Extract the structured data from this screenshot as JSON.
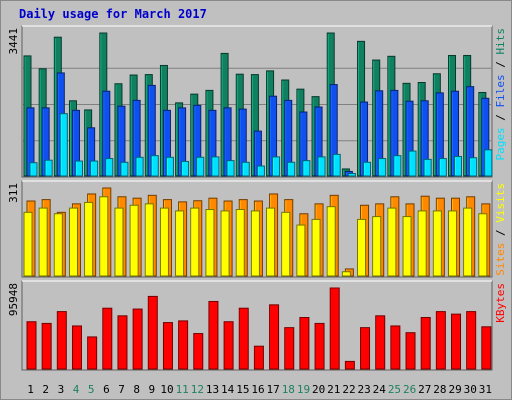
{
  "title": "Daily usage for March 2017",
  "colors": {
    "background": "#c0c0c0",
    "pages": "#00e0ff",
    "files": "#1050f0",
    "hits": "#108060",
    "visits": "#ffff00",
    "sites": "#ff8800",
    "kbytes": "#ff0000",
    "weekend": "#208060",
    "weekday": "#000000"
  },
  "chart_data": [
    {
      "type": "bar",
      "panel": "top",
      "max_label": "3441",
      "ylim": [
        0,
        3441
      ],
      "side_label": {
        "parts": [
          "Pages",
          " / ",
          "Files",
          " / ",
          "Hits"
        ]
      },
      "categories": [
        "1",
        "2",
        "3",
        "4",
        "5",
        "6",
        "7",
        "8",
        "9",
        "10",
        "11",
        "12",
        "13",
        "14",
        "15",
        "16",
        "17",
        "18",
        "19",
        "20",
        "21",
        "22",
        "23",
        "24",
        "25",
        "26",
        "27",
        "28",
        "29",
        "30",
        "31"
      ],
      "series": [
        {
          "name": "Hits",
          "values": [
            2890,
            2580,
            3340,
            1810,
            1590,
            3441,
            2220,
            2430,
            2440,
            2660,
            1760,
            1970,
            2060,
            2950,
            2450,
            2440,
            2530,
            2310,
            2090,
            1910,
            3441,
            170,
            3240,
            2790,
            2880,
            2230,
            2250,
            2460,
            2900,
            2900,
            2010
          ]
        },
        {
          "name": "Files",
          "values": [
            1640,
            1640,
            2480,
            1580,
            1160,
            2040,
            1680,
            1820,
            2180,
            1580,
            1640,
            1700,
            1580,
            1640,
            1610,
            1080,
            1920,
            1820,
            1540,
            1660,
            2200,
            110,
            1780,
            2050,
            2060,
            1800,
            1810,
            2000,
            2040,
            2150,
            1870
          ]
        },
        {
          "name": "Pages",
          "values": [
            320,
            380,
            1500,
            360,
            360,
            420,
            330,
            450,
            490,
            450,
            350,
            450,
            460,
            370,
            330,
            240,
            460,
            330,
            370,
            460,
            520,
            60,
            330,
            420,
            490,
            600,
            400,
            420,
            470,
            440,
            630
          ]
        }
      ]
    },
    {
      "type": "bar",
      "panel": "middle",
      "max_label": "311",
      "ylim": [
        0,
        311
      ],
      "side_label": {
        "parts": [
          "Sites",
          " / ",
          "Visits"
        ]
      },
      "categories": [
        "1",
        "2",
        "3",
        "4",
        "5",
        "6",
        "7",
        "8",
        "9",
        "10",
        "11",
        "12",
        "13",
        "14",
        "15",
        "16",
        "17",
        "18",
        "19",
        "20",
        "21",
        "22",
        "23",
        "24",
        "25",
        "26",
        "27",
        "28",
        "29",
        "30",
        "31"
      ],
      "series": [
        {
          "name": "Sites",
          "values": [
            265,
            270,
            225,
            255,
            290,
            311,
            280,
            275,
            285,
            270,
            262,
            266,
            275,
            265,
            270,
            265,
            290,
            270,
            220,
            255,
            285,
            25,
            250,
            255,
            280,
            255,
            282,
            275,
            275,
            280,
            255
          ]
        },
        {
          "name": "Visits",
          "values": [
            225,
            240,
            220,
            240,
            260,
            280,
            240,
            250,
            255,
            240,
            230,
            240,
            235,
            230,
            235,
            230,
            240,
            225,
            180,
            200,
            245,
            15,
            200,
            210,
            240,
            210,
            230,
            230,
            230,
            240,
            220
          ]
        }
      ]
    },
    {
      "type": "bar",
      "panel": "bottom",
      "max_label": "95948",
      "ylim": [
        0,
        95948
      ],
      "side_label": {
        "parts": [
          "KBytes"
        ]
      },
      "categories": [
        "1",
        "2",
        "3",
        "4",
        "5",
        "6",
        "7",
        "8",
        "9",
        "10",
        "11",
        "12",
        "13",
        "14",
        "15",
        "16",
        "17",
        "18",
        "19",
        "20",
        "21",
        "22",
        "23",
        "24",
        "25",
        "26",
        "27",
        "28",
        "29",
        "30",
        "31"
      ],
      "series": [
        {
          "name": "KBytes",
          "values": [
            56000,
            54000,
            68000,
            51000,
            38000,
            72000,
            63000,
            71000,
            86000,
            55000,
            57000,
            42000,
            80000,
            56000,
            72000,
            27000,
            76000,
            49000,
            61000,
            54000,
            95948,
            9000,
            49000,
            63000,
            51000,
            43000,
            61000,
            68000,
            65000,
            68000,
            50000
          ]
        }
      ]
    }
  ],
  "days": [
    "1",
    "2",
    "3",
    "4",
    "5",
    "6",
    "7",
    "8",
    "9",
    "10",
    "11",
    "12",
    "13",
    "14",
    "15",
    "16",
    "17",
    "18",
    "19",
    "20",
    "21",
    "22",
    "23",
    "24",
    "25",
    "26",
    "27",
    "28",
    "29",
    "30",
    "31"
  ],
  "weekend_days": [
    4,
    5,
    11,
    12,
    18,
    19,
    25,
    26
  ]
}
